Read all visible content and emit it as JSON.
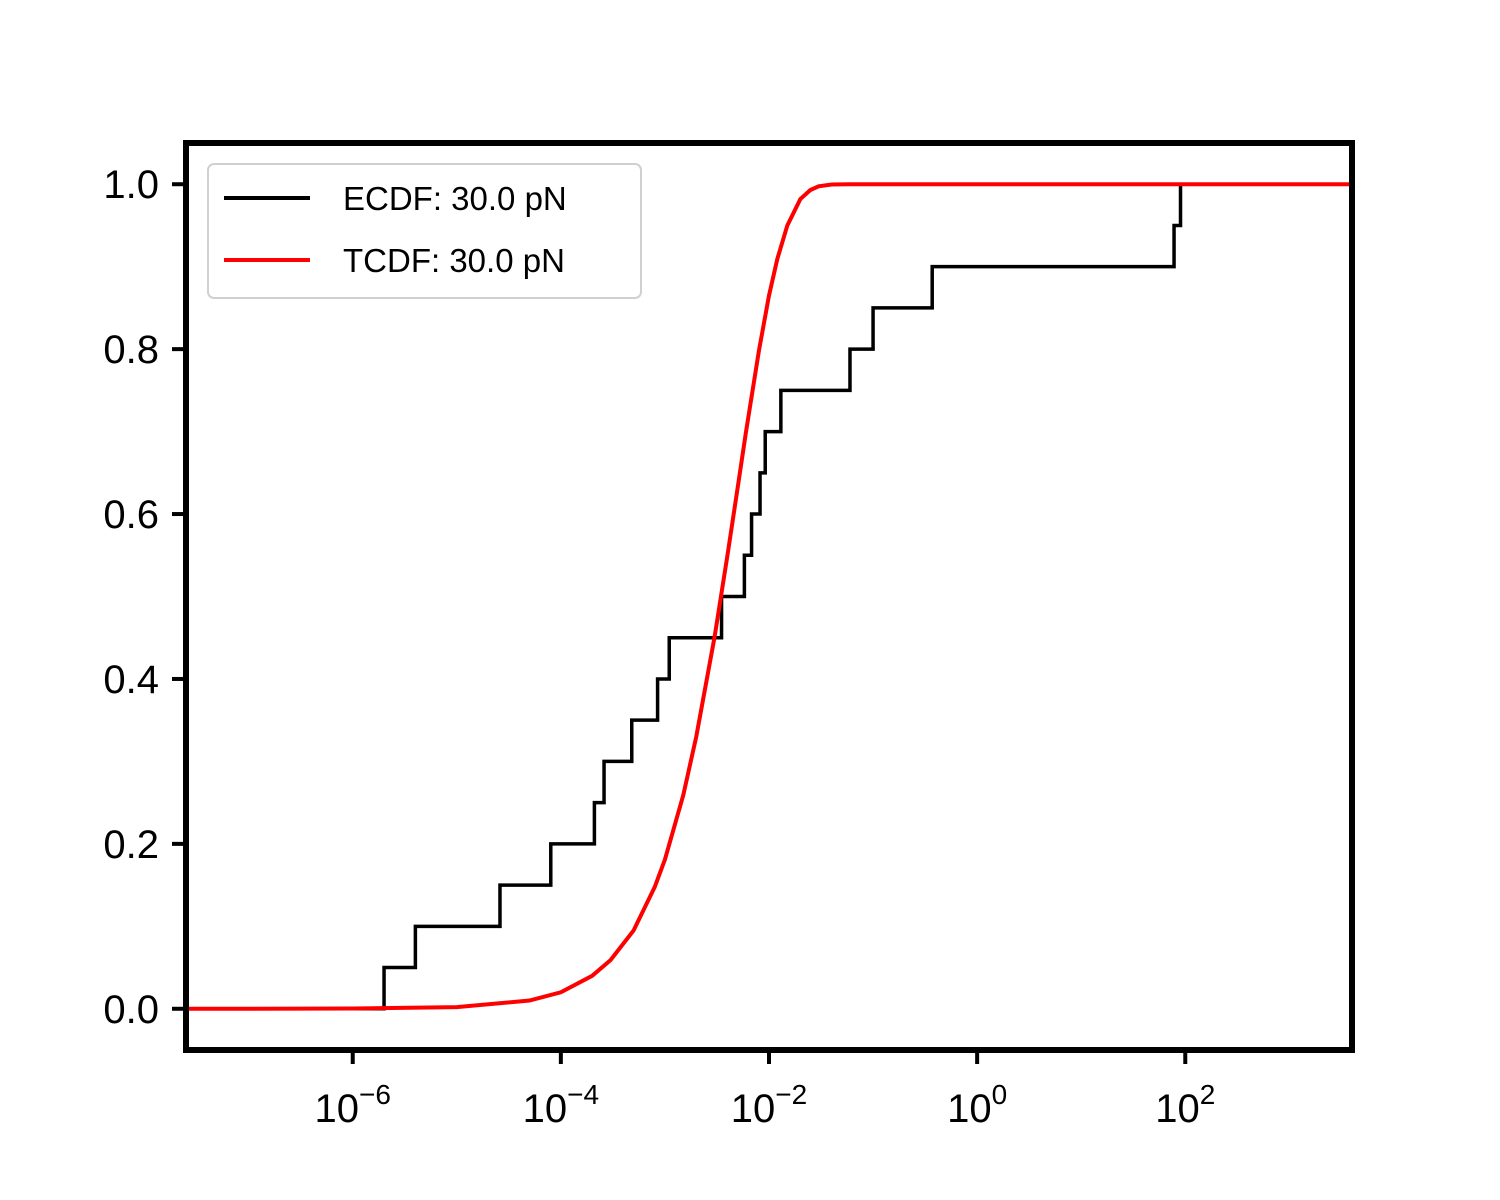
{
  "chart_data": {
    "type": "line",
    "title": "",
    "xlabel": "",
    "ylabel": "",
    "xscale": "log",
    "xlim": [
      2.5e-08,
      4000
    ],
    "ylim": [
      -0.05,
      1.05
    ],
    "grid": false,
    "legend_position": "top-left",
    "x_ticks": [
      {
        "value": 1e-06,
        "base": "10",
        "exp": "−6"
      },
      {
        "value": 0.0001,
        "base": "10",
        "exp": "−4"
      },
      {
        "value": 0.01,
        "base": "10",
        "exp": "−2"
      },
      {
        "value": 1,
        "base": "10",
        "exp": "0"
      },
      {
        "value": 100,
        "base": "10",
        "exp": "2"
      }
    ],
    "y_ticks": [
      {
        "value": 0.0,
        "label": "0.0"
      },
      {
        "value": 0.2,
        "label": "0.2"
      },
      {
        "value": 0.4,
        "label": "0.4"
      },
      {
        "value": 0.6,
        "label": "0.6"
      },
      {
        "value": 0.8,
        "label": "0.8"
      },
      {
        "value": 1.0,
        "label": "1.0"
      }
    ],
    "series": [
      {
        "name": "ECDF: 30.0 pN",
        "color": "#000000",
        "style": "step-post",
        "x": [
          2e-06,
          4e-06,
          2.6e-05,
          8e-05,
          0.00021,
          0.00026,
          0.00048,
          0.00085,
          0.0011,
          0.0035,
          0.0058,
          0.0068,
          0.0082,
          0.0092,
          0.013,
          0.06,
          0.1,
          0.37,
          78,
          90
        ],
        "y": [
          0.05,
          0.1,
          0.15,
          0.2,
          0.25,
          0.3,
          0.35,
          0.4,
          0.45,
          0.5,
          0.55,
          0.6,
          0.65,
          0.7,
          0.75,
          0.8,
          0.85,
          0.9,
          0.95,
          1.0
        ],
        "x_start": 2.5e-08,
        "x_end": 90
      },
      {
        "name": "TCDF: 30.0 pN",
        "color": "#ff0000",
        "style": "line",
        "x": [
          2.5e-08,
          1e-07,
          1e-06,
          1e-05,
          5e-05,
          0.0001,
          0.0002,
          0.0003,
          0.0005,
          0.0008,
          0.001,
          0.0015,
          0.002,
          0.003,
          0.004,
          0.005,
          0.006,
          0.008,
          0.01,
          0.012,
          0.015,
          0.02,
          0.025,
          0.03,
          0.04,
          0.06,
          0.1,
          1,
          10,
          100,
          1000,
          4000
        ],
        "y": [
          0.0,
          0.0,
          0.0004,
          0.002,
          0.01,
          0.02,
          0.04,
          0.059,
          0.095,
          0.148,
          0.181,
          0.259,
          0.33,
          0.451,
          0.551,
          0.632,
          0.699,
          0.798,
          0.865,
          0.909,
          0.95,
          0.982,
          0.993,
          0.9975,
          0.9997,
          1.0,
          1.0,
          1.0,
          1.0,
          1.0,
          1.0,
          1.0
        ]
      }
    ]
  }
}
